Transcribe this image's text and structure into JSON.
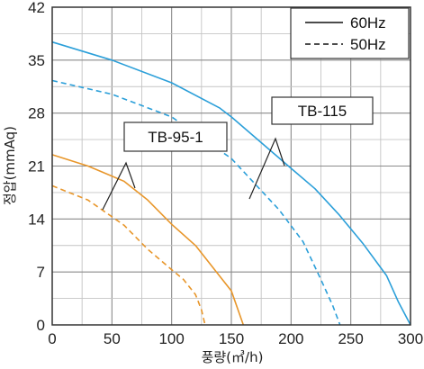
{
  "chart_data": {
    "type": "line",
    "xlabel": "풍량(㎥/h)",
    "ylabel": "정압(mmAq)",
    "xlim": [
      0,
      300
    ],
    "ylim": [
      0,
      42
    ],
    "xticks": [
      0,
      50,
      100,
      150,
      200,
      250,
      300
    ],
    "yticks": [
      0,
      7,
      14,
      21,
      28,
      35,
      42
    ],
    "grid": "minor every 25 x-units and 3.5 y-units; major every 50 x-units and 7 y-units",
    "legend": {
      "placement": "top-right",
      "entries": [
        {
          "label": "60Hz",
          "style": "solid"
        },
        {
          "label": "50Hz",
          "style": "dashed"
        }
      ]
    },
    "models": [
      {
        "label": "TB-95-1",
        "color": "#e8962a"
      },
      {
        "label": "TB-115",
        "color": "#2b9fd9"
      }
    ],
    "series": [
      {
        "model": "TB-115",
        "frequency": "60Hz",
        "style": "solid",
        "color": "#2b9fd9",
        "points": [
          [
            0,
            37.4
          ],
          [
            50,
            35
          ],
          [
            100,
            32
          ],
          [
            140,
            28.7
          ],
          [
            150,
            27.5
          ],
          [
            200,
            20.7
          ],
          [
            220,
            18
          ],
          [
            240,
            14.6
          ],
          [
            260,
            10.8
          ],
          [
            280,
            6.5
          ],
          [
            290,
            3
          ],
          [
            300,
            0
          ]
        ]
      },
      {
        "model": "TB-115",
        "frequency": "50Hz",
        "style": "dashed",
        "color": "#2b9fd9",
        "points": [
          [
            0,
            32.3
          ],
          [
            50,
            30.5
          ],
          [
            100,
            27.5
          ],
          [
            150,
            22
          ],
          [
            190,
            15.2
          ],
          [
            210,
            11
          ],
          [
            225,
            6
          ],
          [
            235,
            2.5
          ],
          [
            241,
            0
          ]
        ]
      },
      {
        "model": "TB-95-1",
        "frequency": "60Hz",
        "style": "solid",
        "color": "#e8962a",
        "points": [
          [
            0,
            22.5
          ],
          [
            30,
            21
          ],
          [
            60,
            19
          ],
          [
            80,
            16.5
          ],
          [
            100,
            13.3
          ],
          [
            120,
            10.5
          ],
          [
            140,
            6.5
          ],
          [
            150,
            4.5
          ],
          [
            160,
            0
          ]
        ]
      },
      {
        "model": "TB-95-1",
        "frequency": "50Hz",
        "style": "dashed",
        "color": "#e8962a",
        "points": [
          [
            0,
            18.4
          ],
          [
            30,
            16.5
          ],
          [
            60,
            13.2
          ],
          [
            80,
            10
          ],
          [
            100,
            7.3
          ],
          [
            110,
            6
          ],
          [
            120,
            4
          ],
          [
            125,
            2
          ],
          [
            128,
            0
          ]
        ]
      }
    ]
  }
}
